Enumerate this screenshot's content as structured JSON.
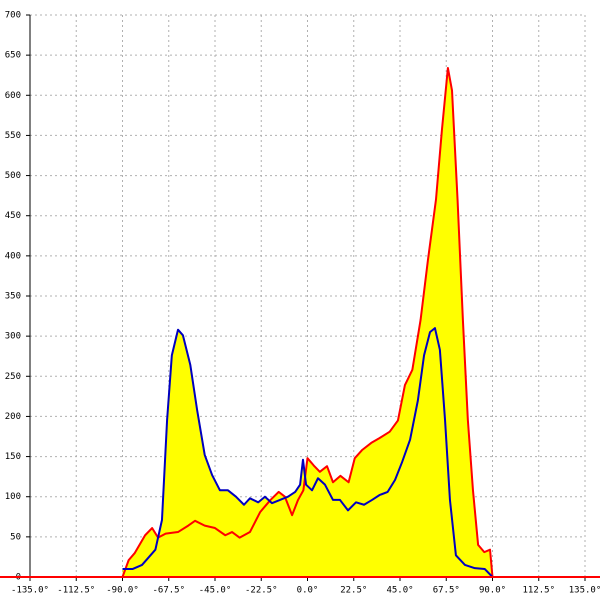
{
  "chart_data": {
    "type": "area-line",
    "fill": "#ffff00",
    "axis_color": "#ff0000",
    "grid": true,
    "xlim": [
      -135,
      135
    ],
    "ylim": [
      0,
      700
    ],
    "xticks": [
      {
        "value": -135,
        "label": "-135.0°"
      },
      {
        "value": -112.5,
        "label": "-112.5°"
      },
      {
        "value": -90,
        "label": "-90.0°"
      },
      {
        "value": -67.5,
        "label": "-67.5°"
      },
      {
        "value": -45,
        "label": "-45.0°"
      },
      {
        "value": -22.5,
        "label": "-22.5°"
      },
      {
        "value": 0,
        "label": "0.0°"
      },
      {
        "value": 22.5,
        "label": "22.5°"
      },
      {
        "value": 45,
        "label": "45.0°"
      },
      {
        "value": 67.5,
        "label": "67.5°"
      },
      {
        "value": 90,
        "label": "90.0°"
      },
      {
        "value": 112.5,
        "label": "112.5°"
      },
      {
        "value": 135,
        "label": "135.0°"
      }
    ],
    "yticks": [
      0,
      50,
      100,
      150,
      200,
      250,
      300,
      350,
      400,
      450,
      500,
      550,
      600,
      650,
      700
    ],
    "series": [
      {
        "color": "#ff0000",
        "x": [
          -90,
          -87,
          -84,
          -79,
          -75.6,
          -72.7,
          -69,
          -63,
          -58,
          -54.7,
          -50,
          -45,
          -40,
          -36.7,
          -33,
          -28,
          -23,
          -18,
          -14,
          -11,
          -7.5,
          -4.6,
          -2,
          0,
          3,
          6,
          9.5,
          12.4,
          16,
          20,
          23,
          26.5,
          31,
          35,
          40,
          44,
          47.4,
          51,
          55,
          58.6,
          62.5,
          65.4,
          68.3,
          70.3,
          73,
          75.6,
          78,
          80.5,
          83,
          86,
          88.8,
          90
        ],
        "values": [
          0,
          21,
          30,
          52,
          61,
          49,
          54,
          56,
          64,
          70,
          64,
          61,
          52,
          56,
          49,
          56,
          81,
          96,
          106,
          100,
          77,
          96,
          108,
          148,
          139,
          131,
          138,
          118,
          126,
          118,
          148,
          158,
          167,
          173,
          181,
          195,
          239,
          258,
          320,
          395,
          470,
          557,
          634,
          606,
          470,
          320,
          196,
          108,
          40,
          31,
          34,
          0
        ]
      },
      {
        "color": "#0000c0",
        "x": [
          -90,
          -85,
          -80.5,
          -74,
          -70.8,
          -68.3,
          -66,
          -63,
          -60.6,
          -57,
          -53.7,
          -50,
          -46.4,
          -42.6,
          -38.7,
          -34.8,
          -30.9,
          -28,
          -24,
          -20.7,
          -17.3,
          -13.4,
          -9.5,
          -6,
          -3.6,
          -2.2,
          -0.7,
          2.2,
          5.1,
          8.5,
          12.4,
          15.8,
          19.7,
          23.6,
          27.5,
          31.4,
          35,
          39,
          42.6,
          46,
          49.9,
          53.7,
          56.7,
          59.6,
          62,
          64.4,
          66.9,
          69.3,
          72.2,
          76.6,
          81.4,
          86.2,
          90
        ],
        "values": [
          10,
          10,
          15,
          34,
          71,
          196,
          276,
          308,
          301,
          264,
          208,
          152,
          127,
          108,
          108,
          100,
          90,
          98,
          93,
          100,
          92,
          96,
          100,
          106,
          115,
          146,
          115,
          108,
          123,
          115,
          96,
          96,
          83,
          93,
          90,
          96,
          102,
          106,
          121,
          143,
          171,
          220,
          276,
          305,
          310,
          283,
          196,
          96,
          27,
          15,
          11,
          10,
          0
        ]
      }
    ]
  }
}
